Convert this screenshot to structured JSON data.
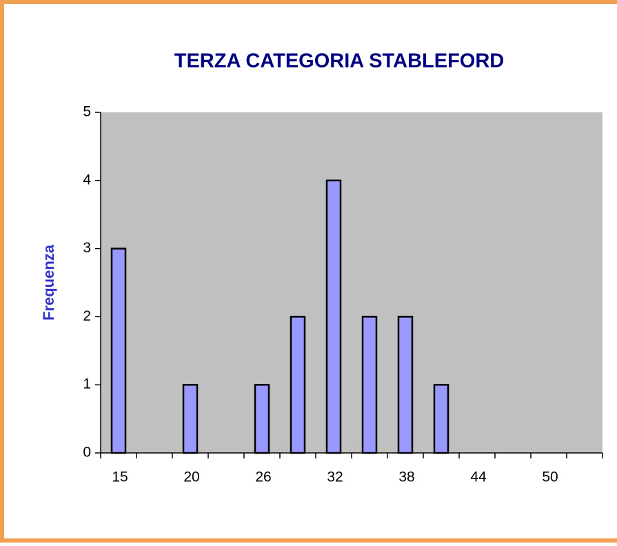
{
  "chart_data": {
    "type": "bar",
    "title": "TERZA CATEGORIA STABLEFORD",
    "y_label": "Frequenza",
    "categories": [
      "15",
      null,
      "20",
      null,
      "26",
      null,
      "32",
      null,
      "38",
      null,
      "44",
      null,
      "50",
      null
    ],
    "values": [
      3,
      0,
      1,
      0,
      1,
      2,
      4,
      2,
      2,
      1,
      0,
      0,
      0,
      0
    ],
    "color": "#9999ff",
    "ylim": [
      0,
      5
    ],
    "yticks": [
      0,
      1,
      2,
      3,
      4,
      5
    ],
    "grid": false
  }
}
